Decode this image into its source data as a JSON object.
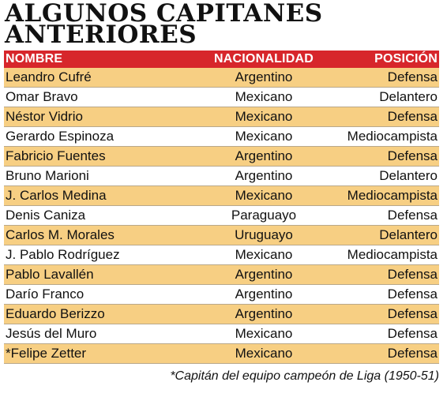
{
  "title": {
    "line1": "ALGUNOS CAPITANES",
    "line2": "ANTERIORES"
  },
  "table": {
    "headers": [
      "NOMBRE",
      "NACIONALIDAD",
      "POSICIÓN"
    ],
    "rows": [
      [
        "Leandro Cufré",
        "Argentino",
        "Defensa"
      ],
      [
        "Omar Bravo",
        "Mexicano",
        "Delantero"
      ],
      [
        "Néstor Vidrio",
        "Mexicano",
        "Defensa"
      ],
      [
        "Gerardo Espinoza",
        "Mexicano",
        "Mediocampista"
      ],
      [
        "Fabricio Fuentes",
        "Argentino",
        "Defensa"
      ],
      [
        "Bruno Marioni",
        "Argentino",
        "Delantero"
      ],
      [
        "J. Carlos Medina",
        "Mexicano",
        "Mediocampista"
      ],
      [
        "Denis Caniza",
        "Paraguayo",
        "Defensa"
      ],
      [
        "Carlos M. Morales",
        "Uruguayo",
        "Delantero"
      ],
      [
        "J. Pablo Rodríguez",
        "Mexicano",
        "Mediocampista"
      ],
      [
        "Pablo Lavallén",
        "Argentino",
        "Defensa"
      ],
      [
        "Darío Franco",
        "Argentino",
        "Defensa"
      ],
      [
        "Eduardo Berizzo",
        "Argentino",
        "Defensa"
      ],
      [
        "Jesús del Muro",
        "Mexicano",
        "Defensa"
      ],
      [
        "*Felipe Zetter",
        "Mexicano",
        "Defensa"
      ]
    ]
  },
  "footnote": "*Capitán del equipo campeón de Liga (1950-51)",
  "colors": {
    "header_bg": "#d7262b",
    "stripe_bg": "#f7cf83"
  }
}
